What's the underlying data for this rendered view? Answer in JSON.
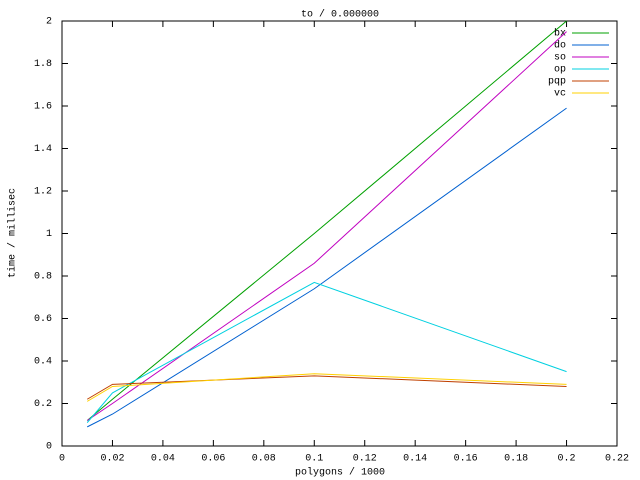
{
  "chart_data": {
    "type": "line",
    "title": "to / 0.000000",
    "x_label": "polygons / 1000",
    "y_label": "time / millisec",
    "x": [
      0.01,
      0.02,
      0.1,
      0.2
    ],
    "series": [
      {
        "name": "bx",
        "color": "#00a000",
        "values": [
          0.12,
          0.22,
          1.0,
          2.0
        ]
      },
      {
        "name": "do",
        "color": "#0060d0",
        "values": [
          0.09,
          0.15,
          0.74,
          1.59
        ]
      },
      {
        "name": "so",
        "color": "#c000c0",
        "values": [
          0.12,
          0.2,
          0.86,
          1.95
        ]
      },
      {
        "name": "op",
        "color": "#00d0e0",
        "values": [
          0.11,
          0.25,
          0.77,
          0.35
        ]
      },
      {
        "name": "pqp",
        "color": "#c04000",
        "values": [
          0.22,
          0.29,
          0.33,
          0.28
        ]
      },
      {
        "name": "vc",
        "color": "#ffd000",
        "values": [
          0.21,
          0.28,
          0.34,
          0.29
        ]
      }
    ],
    "xlim": [
      0,
      0.22
    ],
    "xticks": [
      0,
      0.02,
      0.04,
      0.06,
      0.08,
      0.1,
      0.12,
      0.14,
      0.16,
      0.18,
      0.2,
      0.22
    ],
    "ylim": [
      0,
      2
    ],
    "yticks": [
      0,
      0.2,
      0.4,
      0.6,
      0.8,
      1,
      1.2,
      1.4,
      1.6,
      1.8,
      2
    ],
    "grid": false,
    "legend": "upper-right"
  }
}
